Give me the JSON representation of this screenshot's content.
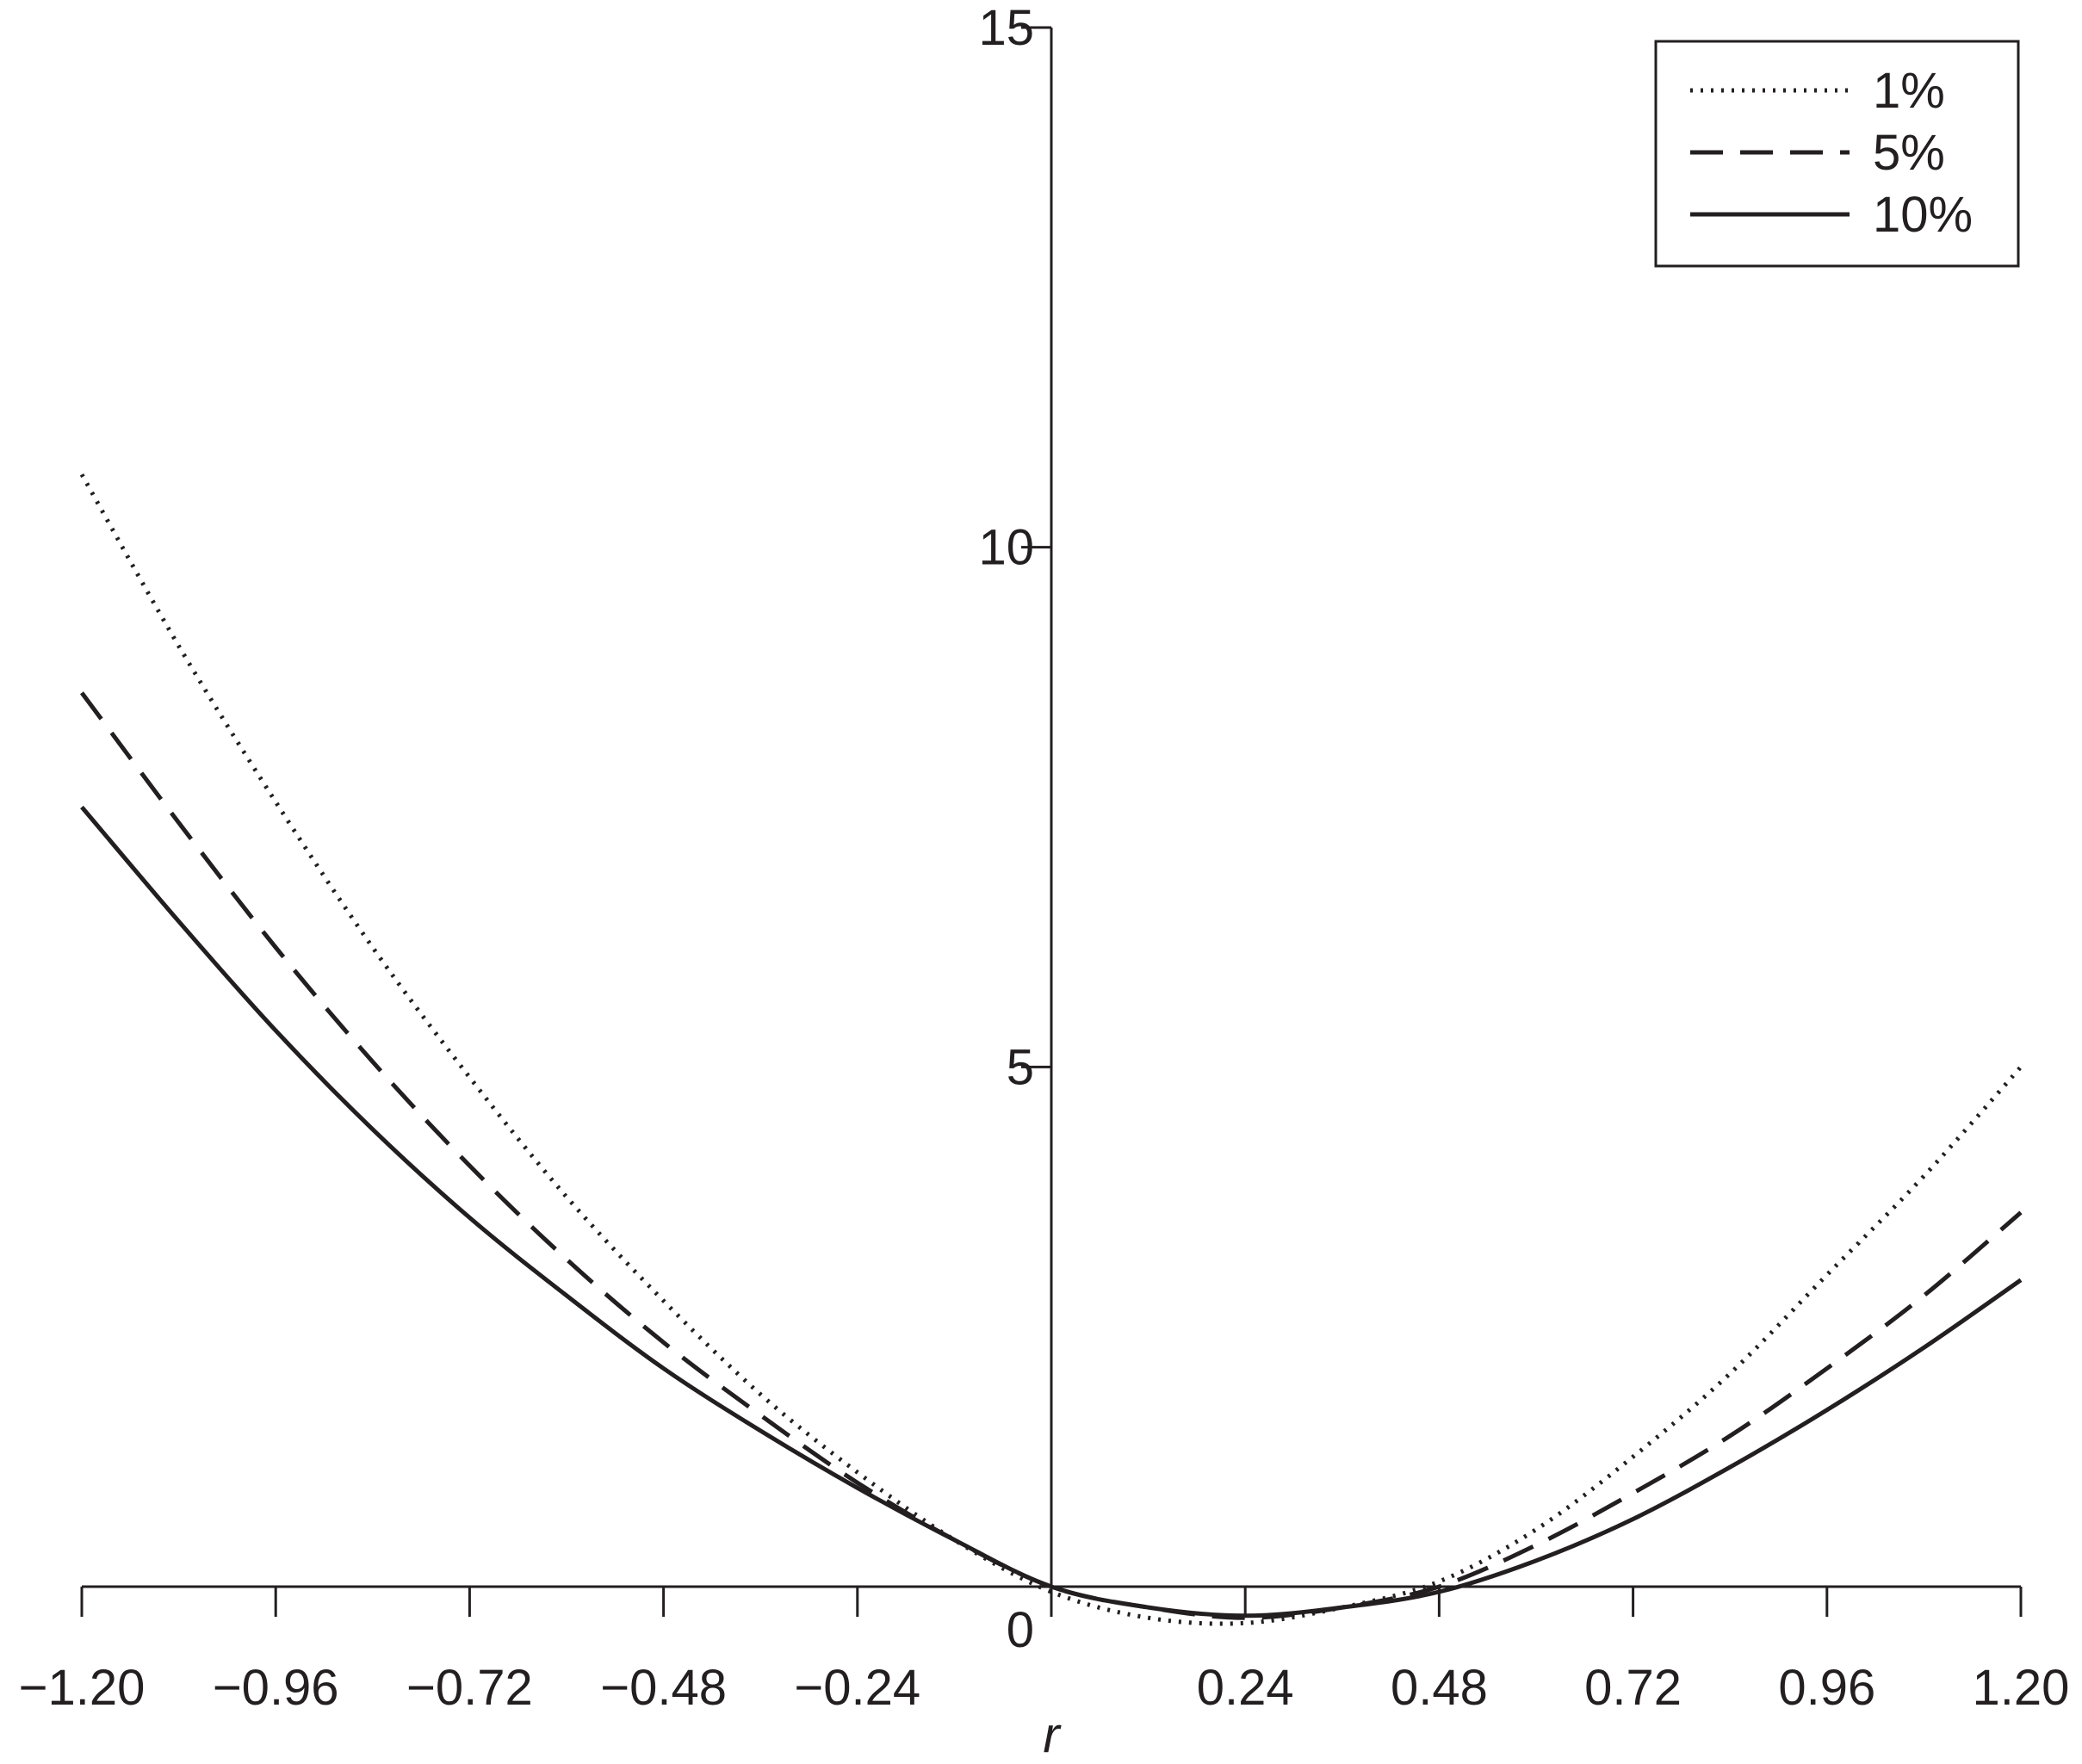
{
  "chart_data": {
    "type": "line",
    "title": "",
    "xlabel": "r",
    "ylabel": "",
    "xlim": [
      -1.2,
      1.2
    ],
    "ylim": [
      0,
      15
    ],
    "x_ticks": [
      -1.2,
      -0.96,
      -0.72,
      -0.48,
      -0.24,
      0,
      0.24,
      0.48,
      0.72,
      0.96,
      1.2
    ],
    "x_tick_labels": [
      "−1.20",
      "−0.96",
      "−0.72",
      "−0.48",
      "−0.24",
      "",
      "0.24",
      "0.48",
      "0.72",
      "0.96",
      "1.20"
    ],
    "y_ticks": [
      0,
      5,
      10,
      15
    ],
    "y_tick_labels": [
      "0",
      "5",
      "10",
      "15"
    ],
    "grid": false,
    "legend_position": "top-right",
    "series": [
      {
        "name": "1%",
        "style": "dotted",
        "color": "#231f20",
        "x": [
          -1.2,
          -1.08,
          -0.96,
          -0.84,
          -0.72,
          -0.6,
          -0.48,
          -0.36,
          -0.24,
          -0.12,
          0,
          0.12,
          0.24,
          0.36,
          0.48,
          0.6,
          0.72,
          0.84,
          0.96,
          1.08,
          1.2
        ],
        "values": [
          10.7,
          9.05,
          7.55,
          6.15,
          4.9,
          3.75,
          2.75,
          1.85,
          1.1,
          0.45,
          -0.05,
          -0.3,
          -0.35,
          -0.2,
          0.05,
          0.55,
          1.25,
          2.05,
          3.0,
          3.95,
          5.0
        ]
      },
      {
        "name": "5%",
        "style": "dashed",
        "color": "#231f20",
        "x": [
          -1.2,
          -1.08,
          -0.96,
          -0.84,
          -0.72,
          -0.6,
          -0.48,
          -0.36,
          -0.24,
          -0.12,
          0,
          0.12,
          0.24,
          0.36,
          0.48,
          0.6,
          0.72,
          0.84,
          0.96,
          1.08,
          1.2
        ],
        "values": [
          8.6,
          7.35,
          6.15,
          5.05,
          4.05,
          3.15,
          2.35,
          1.65,
          1.0,
          0.45,
          0.0,
          -0.2,
          -0.3,
          -0.2,
          0.0,
          0.4,
          0.9,
          1.45,
          2.1,
          2.8,
          3.6
        ]
      },
      {
        "name": "10%",
        "style": "solid",
        "color": "#231f20",
        "x": [
          -1.2,
          -1.08,
          -0.96,
          -0.84,
          -0.72,
          -0.6,
          -0.48,
          -0.36,
          -0.24,
          -0.12,
          0,
          0.12,
          0.24,
          0.36,
          0.48,
          0.6,
          0.72,
          0.84,
          0.96,
          1.08,
          1.2
        ],
        "values": [
          7.5,
          6.4,
          5.35,
          4.4,
          3.55,
          2.8,
          2.1,
          1.5,
          0.95,
          0.45,
          0.0,
          -0.2,
          -0.28,
          -0.2,
          -0.05,
          0.25,
          0.65,
          1.15,
          1.7,
          2.3,
          2.95
        ]
      }
    ]
  }
}
